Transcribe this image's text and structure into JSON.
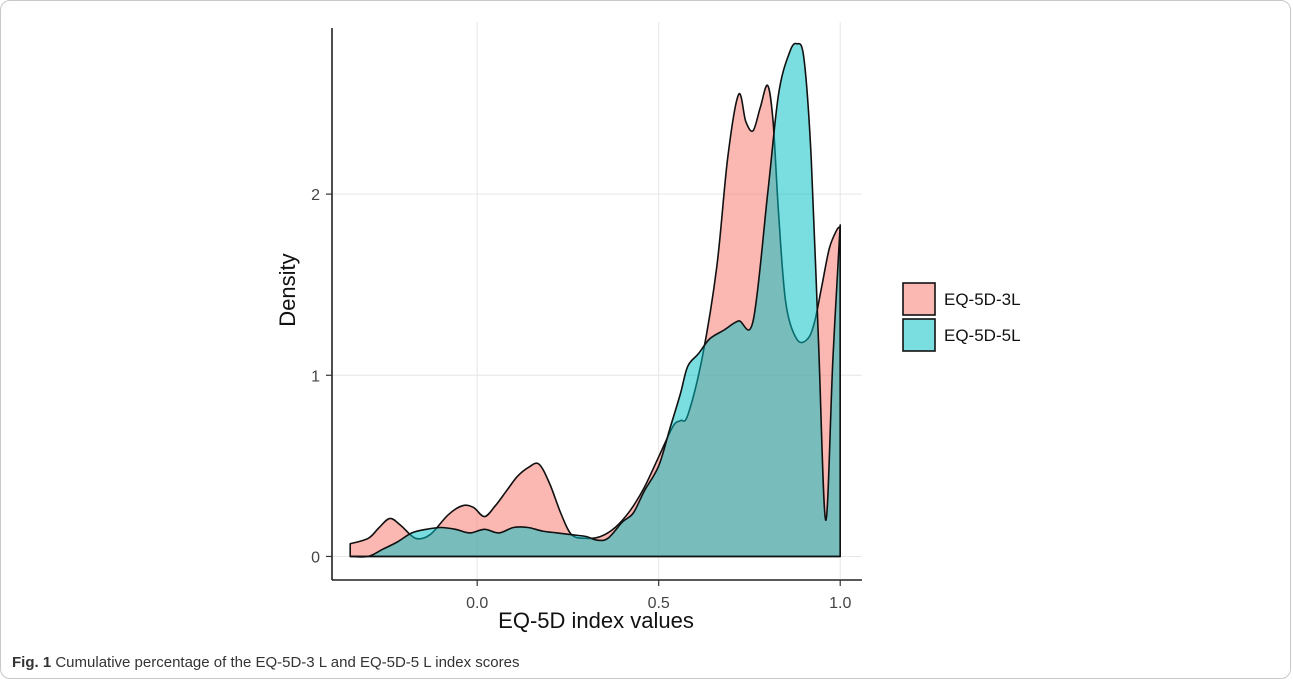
{
  "caption": {
    "label": "Fig. 1",
    "text": "Cumulative percentage of the EQ-5D-3 L and EQ-5D-5 L index scores"
  },
  "chart_data": {
    "type": "area",
    "title": "",
    "xlabel": "EQ-5D index values",
    "ylabel": "Density",
    "xlim": [
      -0.4,
      1.06
    ],
    "ylim": [
      -0.13,
      2.95
    ],
    "xticks": [
      0.0,
      0.5,
      1.0
    ],
    "xtick_labels": [
      "0.0",
      "0.5",
      "1.0"
    ],
    "yticks": [
      0,
      1,
      2
    ],
    "ytick_labels": [
      "0",
      "1",
      "2"
    ],
    "grid": true,
    "legend": "right",
    "series": [
      {
        "name": "EQ-5D-3L",
        "color": "#f8766d",
        "x": [
          -0.35,
          -0.3,
          -0.27,
          -0.24,
          -0.21,
          -0.17,
          -0.13,
          -0.08,
          -0.04,
          -0.01,
          0.02,
          0.05,
          0.08,
          0.11,
          0.14,
          0.17,
          0.2,
          0.23,
          0.26,
          0.3,
          0.34,
          0.38,
          0.42,
          0.46,
          0.5,
          0.54,
          0.56,
          0.58,
          0.62,
          0.66,
          0.69,
          0.72,
          0.74,
          0.76,
          0.78,
          0.8,
          0.815,
          0.83,
          0.85,
          0.88,
          0.91,
          0.93,
          0.95,
          0.97,
          0.99,
          1.0
        ],
        "y": [
          0.07,
          0.1,
          0.16,
          0.21,
          0.17,
          0.1,
          0.12,
          0.23,
          0.28,
          0.27,
          0.22,
          0.28,
          0.36,
          0.44,
          0.49,
          0.51,
          0.4,
          0.24,
          0.12,
          0.1,
          0.11,
          0.16,
          0.25,
          0.38,
          0.55,
          0.72,
          0.75,
          0.78,
          1.1,
          1.6,
          2.2,
          2.55,
          2.4,
          2.35,
          2.48,
          2.6,
          2.4,
          1.9,
          1.4,
          1.2,
          1.2,
          1.3,
          1.5,
          1.7,
          1.8,
          1.82
        ]
      },
      {
        "name": "EQ-5D-5L",
        "color": "#00bfc4",
        "x": [
          -0.35,
          -0.3,
          -0.26,
          -0.22,
          -0.18,
          -0.14,
          -0.1,
          -0.06,
          -0.02,
          0.02,
          0.06,
          0.1,
          0.14,
          0.18,
          0.22,
          0.26,
          0.3,
          0.33,
          0.36,
          0.4,
          0.43,
          0.46,
          0.5,
          0.53,
          0.56,
          0.58,
          0.61,
          0.64,
          0.68,
          0.72,
          0.76,
          0.8,
          0.83,
          0.86,
          0.88,
          0.9,
          0.92,
          0.94,
          0.96,
          0.98,
          1.0
        ],
        "y": [
          0.0,
          0.0,
          0.04,
          0.08,
          0.13,
          0.15,
          0.16,
          0.15,
          0.13,
          0.15,
          0.13,
          0.16,
          0.16,
          0.14,
          0.13,
          0.12,
          0.11,
          0.09,
          0.1,
          0.19,
          0.24,
          0.36,
          0.5,
          0.7,
          0.9,
          1.05,
          1.12,
          1.2,
          1.25,
          1.3,
          1.3,
          2.0,
          2.55,
          2.78,
          2.83,
          2.75,
          2.2,
          1.2,
          0.2,
          1.1,
          1.83
        ]
      }
    ]
  }
}
